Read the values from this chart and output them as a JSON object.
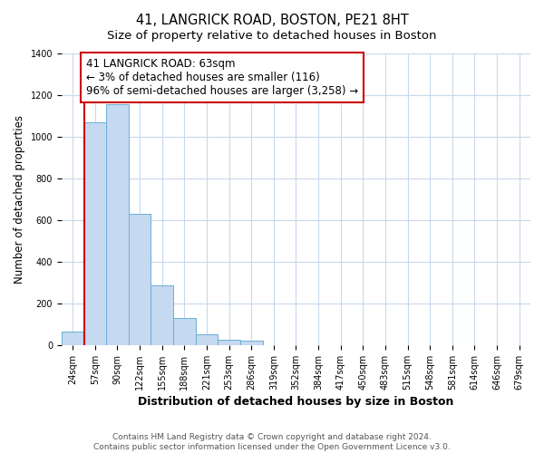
{
  "title": "41, LANGRICK ROAD, BOSTON, PE21 8HT",
  "subtitle": "Size of property relative to detached houses in Boston",
  "xlabel": "Distribution of detached houses by size in Boston",
  "ylabel": "Number of detached properties",
  "bar_labels": [
    "24sqm",
    "57sqm",
    "90sqm",
    "122sqm",
    "155sqm",
    "188sqm",
    "221sqm",
    "253sqm",
    "286sqm",
    "319sqm",
    "352sqm",
    "384sqm",
    "417sqm",
    "450sqm",
    "483sqm",
    "515sqm",
    "548sqm",
    "581sqm",
    "614sqm",
    "646sqm",
    "679sqm"
  ],
  "bar_values": [
    65,
    1070,
    1155,
    630,
    285,
    130,
    50,
    25,
    20,
    0,
    0,
    0,
    0,
    0,
    0,
    0,
    0,
    0,
    0,
    0,
    0
  ],
  "bar_color": "#c5d9f0",
  "bar_edge_color": "#6baed6",
  "vline_x": 0.5,
  "vline_color": "#cc0000",
  "annotation_line1": "41 LANGRICK ROAD: 63sqm",
  "annotation_line2": "← 3% of detached houses are smaller (116)",
  "annotation_line3": "96% of semi-detached houses are larger (3,258) →",
  "annotation_box_color": "#ffffff",
  "annotation_box_edge": "#cc0000",
  "ylim": [
    0,
    1400
  ],
  "yticks": [
    0,
    200,
    400,
    600,
    800,
    1000,
    1200,
    1400
  ],
  "footer_line1": "Contains HM Land Registry data © Crown copyright and database right 2024.",
  "footer_line2": "Contains public sector information licensed under the Open Government Licence v3.0.",
  "bg_color": "#ffffff",
  "grid_color": "#c8d8ec",
  "title_fontsize": 10.5,
  "subtitle_fontsize": 9.5,
  "xlabel_fontsize": 9,
  "ylabel_fontsize": 8.5,
  "tick_fontsize": 7,
  "annotation_fontsize": 8.5,
  "footer_fontsize": 6.5
}
